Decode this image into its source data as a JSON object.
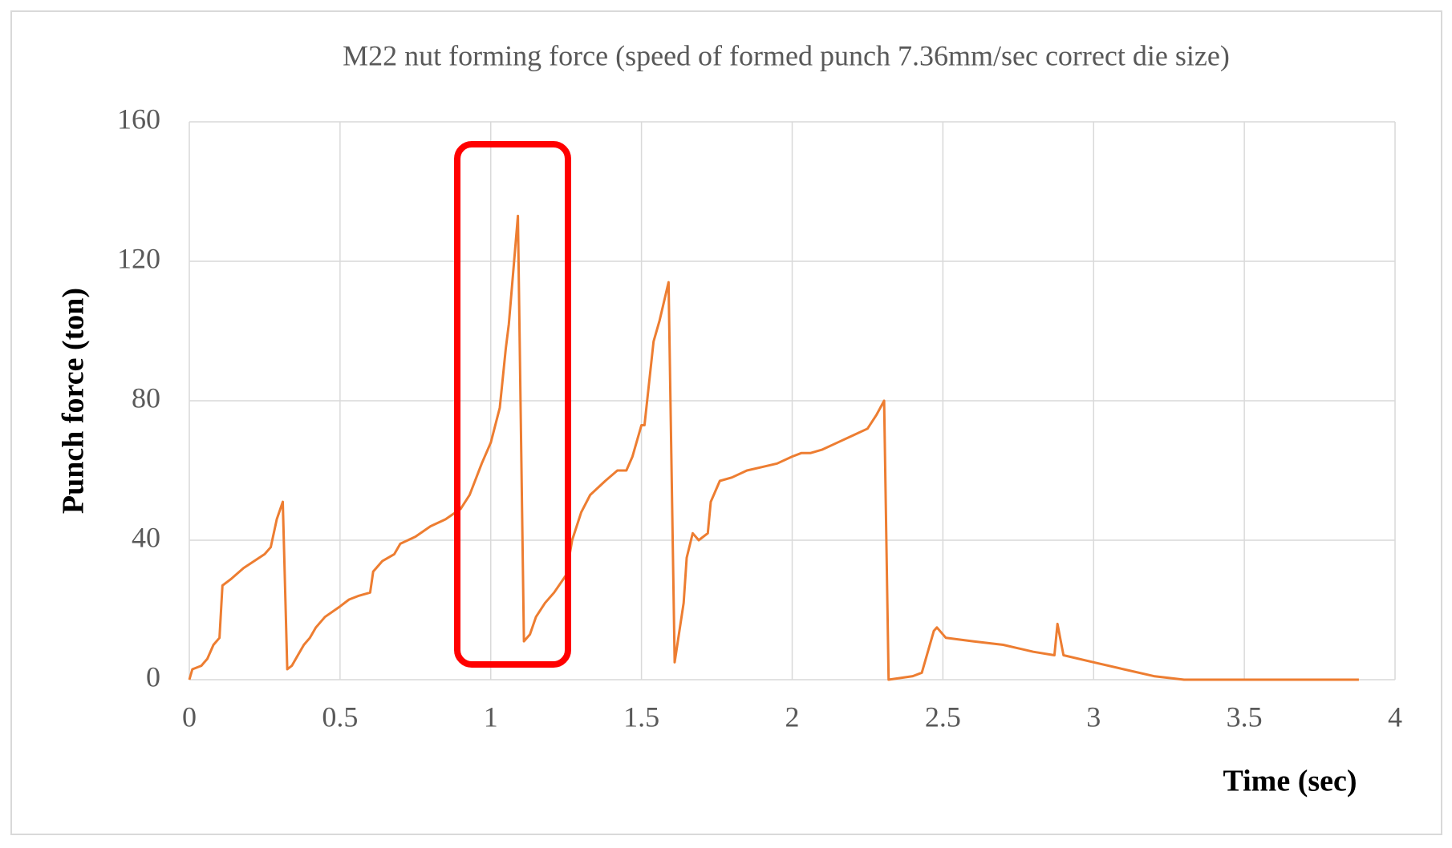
{
  "chart_data": {
    "type": "line",
    "title": "M22 nut forming force (speed of formed punch 7.36mm/sec correct die size)",
    "x_label": "Time (sec)",
    "y_label": "Punch force (ton)",
    "x": [
      0,
      0.01,
      0.04,
      0.06,
      0.08,
      0.1,
      0.11,
      0.14,
      0.18,
      0.25,
      0.27,
      0.29,
      0.31,
      0.325,
      0.34,
      0.36,
      0.38,
      0.4,
      0.42,
      0.45,
      0.5,
      0.53,
      0.56,
      0.6,
      0.61,
      0.64,
      0.68,
      0.7,
      0.75,
      0.8,
      0.85,
      0.9,
      0.93,
      0.97,
      1.0,
      1.03,
      1.05,
      1.06,
      1.09,
      1.11,
      1.13,
      1.15,
      1.18,
      1.21,
      1.25,
      1.27,
      1.3,
      1.33,
      1.38,
      1.42,
      1.45,
      1.47,
      1.5,
      1.51,
      1.54,
      1.56,
      1.59,
      1.61,
      1.64,
      1.65,
      1.67,
      1.69,
      1.72,
      1.73,
      1.76,
      1.8,
      1.85,
      1.9,
      1.95,
      2.0,
      2.03,
      2.06,
      2.1,
      2.15,
      2.2,
      2.25,
      2.28,
      2.305,
      2.32,
      2.4,
      2.43,
      2.47,
      2.48,
      2.51,
      2.6,
      2.7,
      2.8,
      2.87,
      2.88,
      2.9,
      3.0,
      3.1,
      3.2,
      3.3,
      3.5,
      3.88
    ],
    "values": [
      0,
      3,
      4,
      6,
      10,
      12,
      27,
      29,
      32,
      36,
      38,
      46,
      51,
      3,
      4,
      7,
      10,
      12,
      15,
      18,
      21,
      23,
      24,
      25,
      31,
      34,
      36,
      39,
      41,
      44,
      46,
      49,
      53,
      62,
      68,
      78,
      95,
      102,
      133,
      11,
      13,
      18,
      22,
      25,
      30,
      40,
      48,
      53,
      57,
      60,
      60,
      64,
      73,
      73,
      97,
      103,
      114,
      5,
      22,
      35,
      42,
      40,
      42,
      51,
      57,
      58,
      60,
      61,
      62,
      64,
      65,
      65,
      66,
      68,
      70,
      72,
      76,
      80,
      0,
      1,
      2,
      14,
      15,
      12,
      11,
      10,
      8,
      7,
      16,
      7,
      5,
      3,
      1,
      0,
      0,
      0
    ],
    "color": "#ed7d31",
    "xlim": [
      0,
      4
    ],
    "xticks": [
      0,
      0.5,
      1,
      1.5,
      2,
      2.5,
      3,
      3.5,
      4
    ],
    "ylim": [
      0,
      160
    ],
    "yticks": [
      0,
      40,
      80,
      120,
      160
    ],
    "grid": true
  }
}
